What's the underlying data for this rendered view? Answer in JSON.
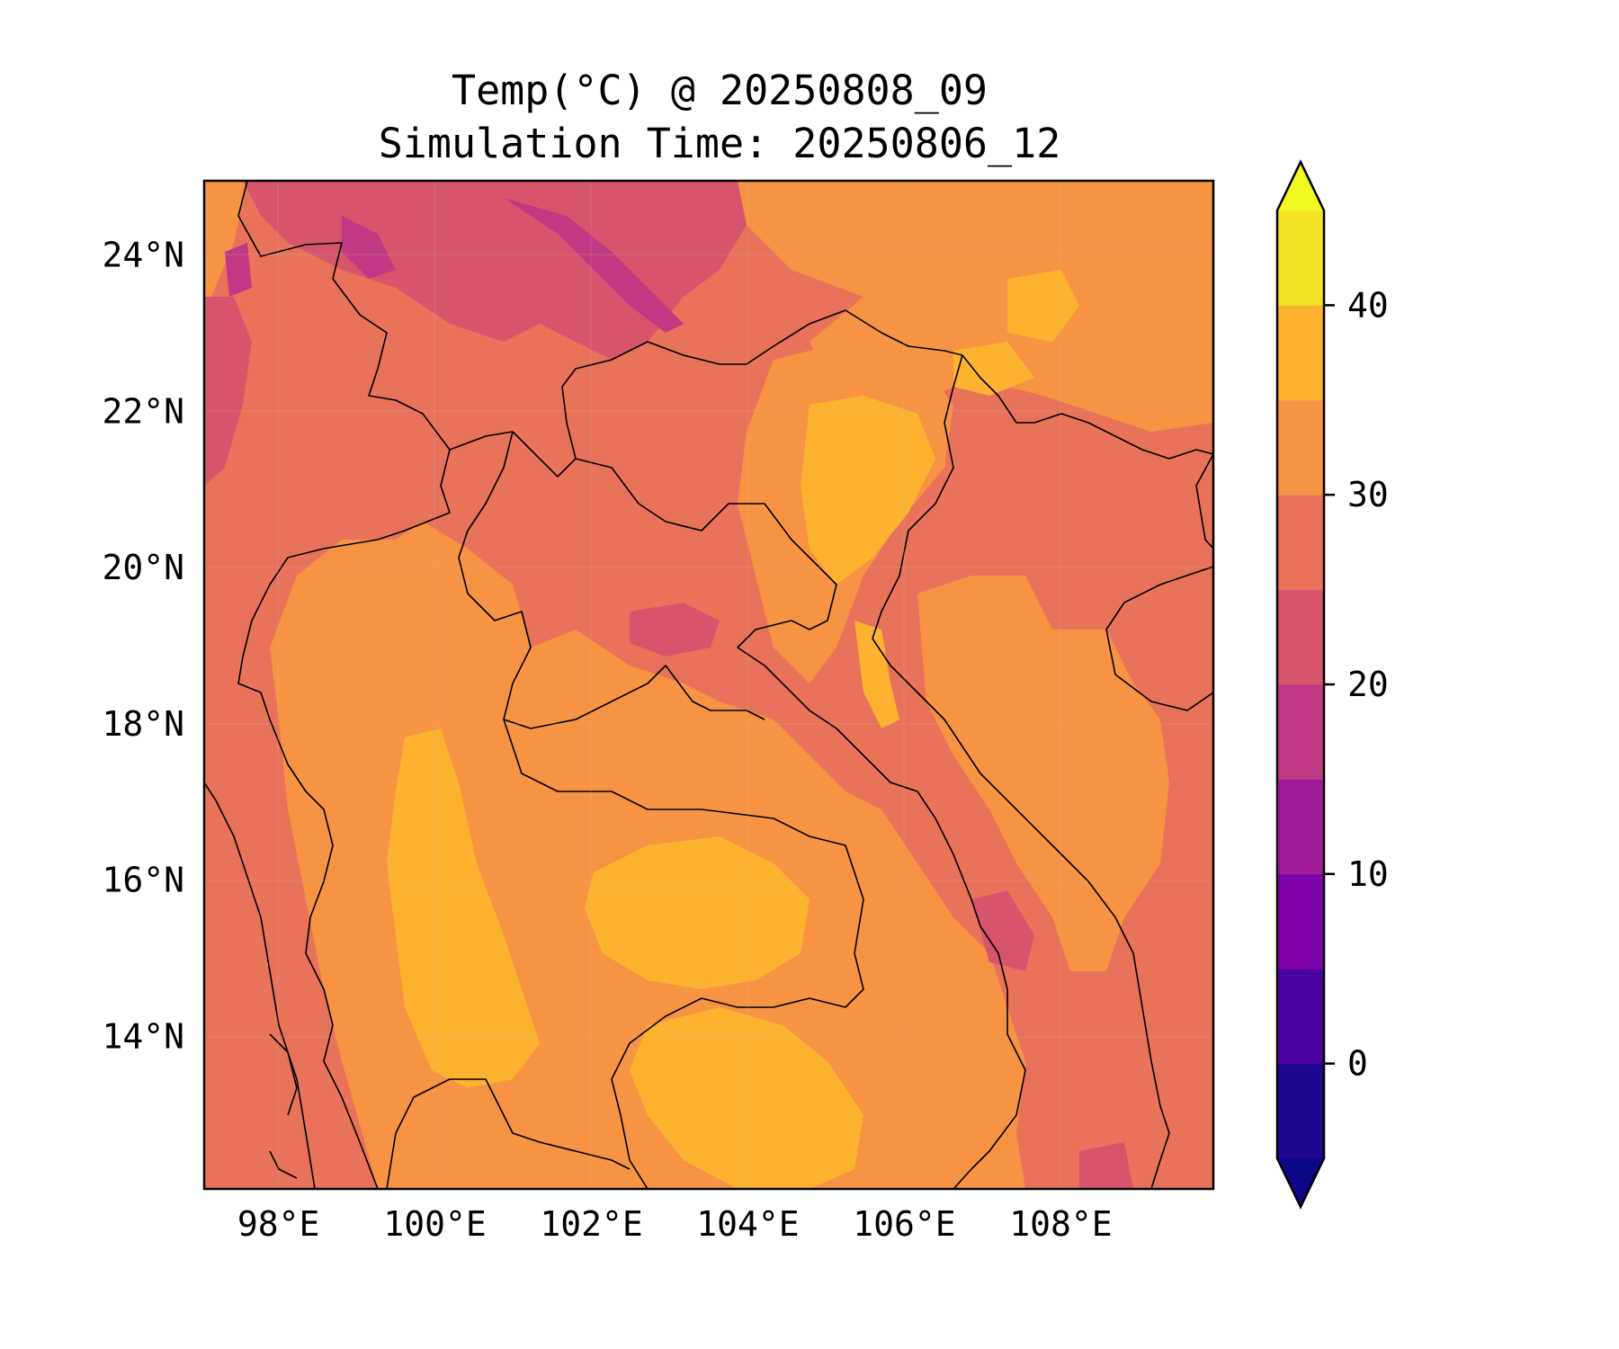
{
  "title": "Temp(°C) @ 20250808_09",
  "subtitle": "Simulation Time: 20250806_12",
  "map": {
    "x_ticks": [
      "98°E",
      "100°E",
      "102°E",
      "104°E",
      "106°E",
      "108°E"
    ],
    "x_tick_values": [
      98,
      100,
      102,
      104,
      106,
      108
    ],
    "y_ticks": [
      "24°N",
      "22°N",
      "20°N",
      "18°N",
      "16°N",
      "14°N"
    ],
    "y_tick_values": [
      24,
      22,
      20,
      18,
      16,
      14
    ],
    "lon_range": [
      97.05,
      109.95
    ],
    "lat_range": [
      12.05,
      24.95
    ],
    "colormap": "plasma"
  },
  "colorbar": {
    "ticks": [
      "0",
      "10",
      "20",
      "30",
      "40"
    ],
    "tick_values": [
      0,
      10,
      20,
      30,
      40
    ],
    "levels": [
      -5,
      0,
      5,
      10,
      15,
      20,
      25,
      30,
      35,
      40,
      45
    ],
    "colors": [
      "#1f068e",
      "#4c02a1",
      "#7e03a8",
      "#a11b9b",
      "#c03a83",
      "#d6556d",
      "#e8735a",
      "#f79443",
      "#fdb32f",
      "#f4e225"
    ],
    "under_color": "#0d0887",
    "over_color": "#f0f921",
    "extend": "both"
  }
}
